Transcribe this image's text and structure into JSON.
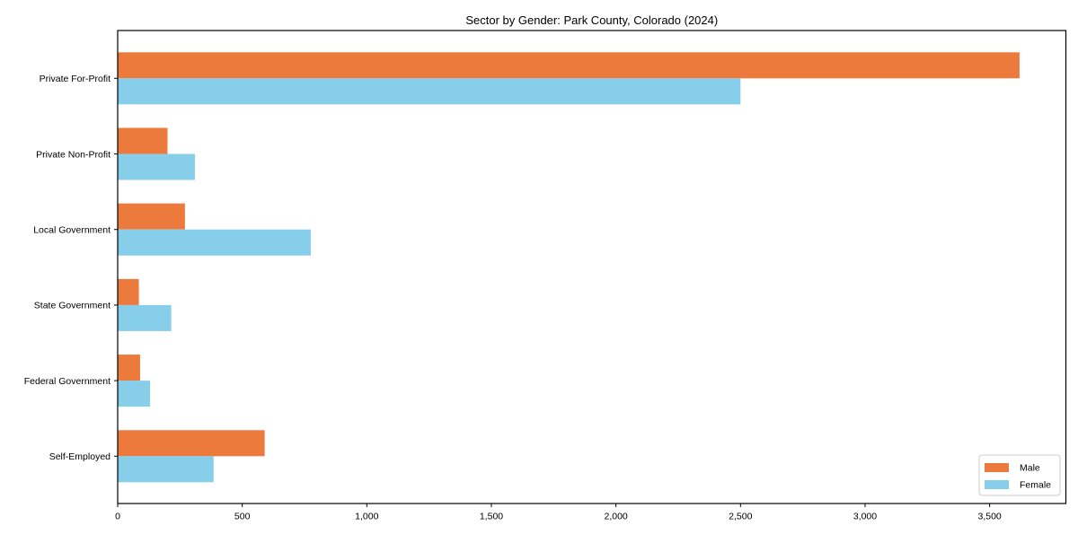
{
  "chart_data": {
    "type": "bar",
    "orientation": "horizontal",
    "title": "Sector by Gender: Park County, Colorado (2024)",
    "categories": [
      "Private For-Profit",
      "Private Non-Profit",
      "Local Government",
      "State Government",
      "Federal Government",
      "Self-Employed"
    ],
    "series": [
      {
        "name": "Male",
        "color": "#ec7a3c",
        "values": [
          3620,
          200,
          270,
          85,
          90,
          590
        ]
      },
      {
        "name": "Female",
        "color": "#87ceeb",
        "values": [
          2500,
          310,
          775,
          215,
          130,
          385
        ]
      }
    ],
    "xlabel": "",
    "ylabel": "",
    "xlim": [
      0,
      3806
    ],
    "x_ticks": [
      0,
      500,
      1000,
      1500,
      2000,
      2500,
      3000,
      3500
    ],
    "x_tick_labels": [
      "0",
      "500",
      "1,000",
      "1,500",
      "2,000",
      "2,500",
      "3,000",
      "3,500"
    ],
    "legend": {
      "position": "lower right",
      "entries": [
        "Male",
        "Female"
      ]
    },
    "grid": false,
    "background_color": "#ffffff",
    "axis_color": "#000000",
    "legend_border_color": "#cccccc"
  }
}
